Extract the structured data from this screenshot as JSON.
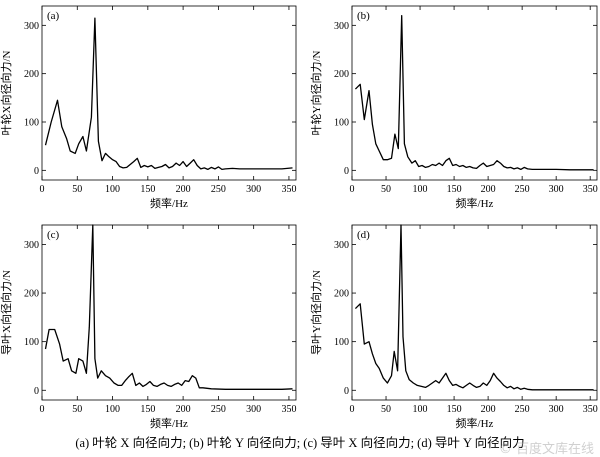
{
  "chart_data": [
    {
      "type": "line",
      "panel_label": "(a)",
      "ylabel": "叶轮X向径向力/N",
      "xlabel": "频率/Hz",
      "xlim": [
        0,
        360
      ],
      "ylim": [
        -20,
        340
      ],
      "xticks": [
        0,
        50,
        100,
        150,
        200,
        250,
        300,
        350
      ],
      "yticks": [
        0,
        100,
        200,
        300
      ],
      "x": [
        5,
        13,
        22,
        28,
        35,
        40,
        47,
        52,
        58,
        63,
        70,
        75,
        80,
        85,
        90,
        95,
        100,
        105,
        110,
        115,
        120,
        125,
        130,
        135,
        140,
        145,
        150,
        155,
        160,
        165,
        170,
        175,
        180,
        185,
        190,
        195,
        200,
        205,
        210,
        215,
        220,
        225,
        230,
        235,
        240,
        245,
        250,
        255,
        260,
        270,
        280,
        290,
        300,
        310,
        320,
        330,
        340,
        355
      ],
      "y": [
        52,
        100,
        145,
        90,
        65,
        40,
        35,
        55,
        70,
        40,
        110,
        315,
        60,
        20,
        35,
        28,
        22,
        18,
        8,
        5,
        6,
        12,
        18,
        25,
        6,
        10,
        7,
        10,
        4,
        6,
        8,
        12,
        5,
        8,
        15,
        10,
        18,
        8,
        15,
        22,
        10,
        3,
        5,
        2,
        6,
        3,
        7,
        2,
        3,
        4,
        3,
        3,
        3,
        3,
        3,
        3,
        3,
        5
      ]
    },
    {
      "type": "line",
      "panel_label": "(b)",
      "ylabel": "叶轮Y向径向力/N",
      "xlabel": "频率/Hz",
      "xlim": [
        0,
        360
      ],
      "ylim": [
        -20,
        340
      ],
      "xticks": [
        0,
        50,
        100,
        150,
        200,
        250,
        300,
        350
      ],
      "yticks": [
        0,
        100,
        200,
        300
      ],
      "x": [
        5,
        12,
        18,
        25,
        30,
        35,
        40,
        46,
        52,
        58,
        63,
        68,
        73,
        77,
        82,
        88,
        93,
        98,
        103,
        108,
        113,
        118,
        123,
        128,
        133,
        138,
        143,
        148,
        153,
        158,
        163,
        168,
        173,
        178,
        183,
        188,
        193,
        198,
        203,
        208,
        213,
        218,
        223,
        228,
        233,
        238,
        243,
        248,
        253,
        258,
        265,
        275,
        285,
        300,
        320,
        340,
        355
      ],
      "y": [
        168,
        178,
        105,
        165,
        95,
        55,
        40,
        22,
        22,
        25,
        75,
        45,
        320,
        55,
        28,
        15,
        20,
        8,
        10,
        6,
        8,
        12,
        10,
        15,
        10,
        20,
        25,
        10,
        12,
        8,
        10,
        6,
        8,
        5,
        4,
        10,
        15,
        8,
        10,
        12,
        20,
        15,
        8,
        5,
        6,
        3,
        5,
        2,
        6,
        3,
        2,
        2,
        2,
        2,
        1,
        1,
        1
      ]
    },
    {
      "type": "line",
      "panel_label": "(c)",
      "ylabel": "导叶X向径向力/N",
      "xlabel": "频率/Hz",
      "xlim": [
        0,
        360
      ],
      "ylim": [
        -20,
        340
      ],
      "xticks": [
        0,
        50,
        100,
        150,
        200,
        250,
        300,
        350
      ],
      "yticks": [
        0,
        100,
        200,
        300
      ],
      "x": [
        5,
        10,
        18,
        25,
        30,
        37,
        42,
        48,
        52,
        58,
        63,
        67,
        72,
        75,
        79,
        84,
        90,
        96,
        102,
        108,
        113,
        118,
        123,
        128,
        133,
        138,
        143,
        148,
        153,
        158,
        163,
        168,
        173,
        178,
        183,
        188,
        193,
        198,
        203,
        208,
        213,
        218,
        223,
        228,
        240,
        260,
        280,
        300,
        320,
        340,
        355
      ],
      "y": [
        85,
        125,
        125,
        95,
        60,
        65,
        40,
        35,
        65,
        60,
        35,
        130,
        340,
        65,
        25,
        40,
        30,
        25,
        15,
        10,
        10,
        20,
        28,
        35,
        10,
        15,
        8,
        12,
        18,
        10,
        8,
        12,
        15,
        10,
        8,
        12,
        15,
        10,
        20,
        18,
        30,
        25,
        5,
        5,
        3,
        2,
        2,
        2,
        2,
        2,
        3
      ]
    },
    {
      "type": "line",
      "panel_label": "(d)",
      "ylabel": "导叶Y向径向力/N",
      "xlabel": "频率/Hz",
      "xlim": [
        0,
        360
      ],
      "ylim": [
        -20,
        340
      ],
      "xticks": [
        0,
        50,
        100,
        150,
        200,
        250,
        300,
        350
      ],
      "yticks": [
        0,
        100,
        200,
        300
      ],
      "x": [
        5,
        12,
        18,
        25,
        30,
        35,
        40,
        46,
        52,
        58,
        62,
        67,
        72,
        75,
        79,
        84,
        90,
        96,
        102,
        108,
        113,
        118,
        123,
        128,
        133,
        138,
        143,
        148,
        153,
        158,
        163,
        168,
        173,
        178,
        183,
        188,
        193,
        198,
        203,
        208,
        213,
        218,
        223,
        228,
        233,
        238,
        243,
        248,
        253,
        258,
        265,
        275,
        290,
        310,
        330,
        355
      ],
      "y": [
        168,
        178,
        95,
        100,
        75,
        55,
        45,
        25,
        15,
        30,
        80,
        40,
        340,
        110,
        40,
        22,
        15,
        10,
        8,
        6,
        10,
        15,
        20,
        15,
        25,
        35,
        20,
        10,
        12,
        8,
        5,
        10,
        15,
        10,
        6,
        8,
        15,
        10,
        20,
        35,
        25,
        18,
        10,
        5,
        8,
        3,
        6,
        2,
        4,
        2,
        1,
        1,
        1,
        1,
        1,
        1
      ]
    }
  ],
  "caption": "(a)  叶轮 X 向径向力;  (b)  叶轮 Y 向径向力;  (c)  导叶 X 向径向力;  (d)  导叶 Y 向径向力",
  "watermark": "© 百度文库在线"
}
